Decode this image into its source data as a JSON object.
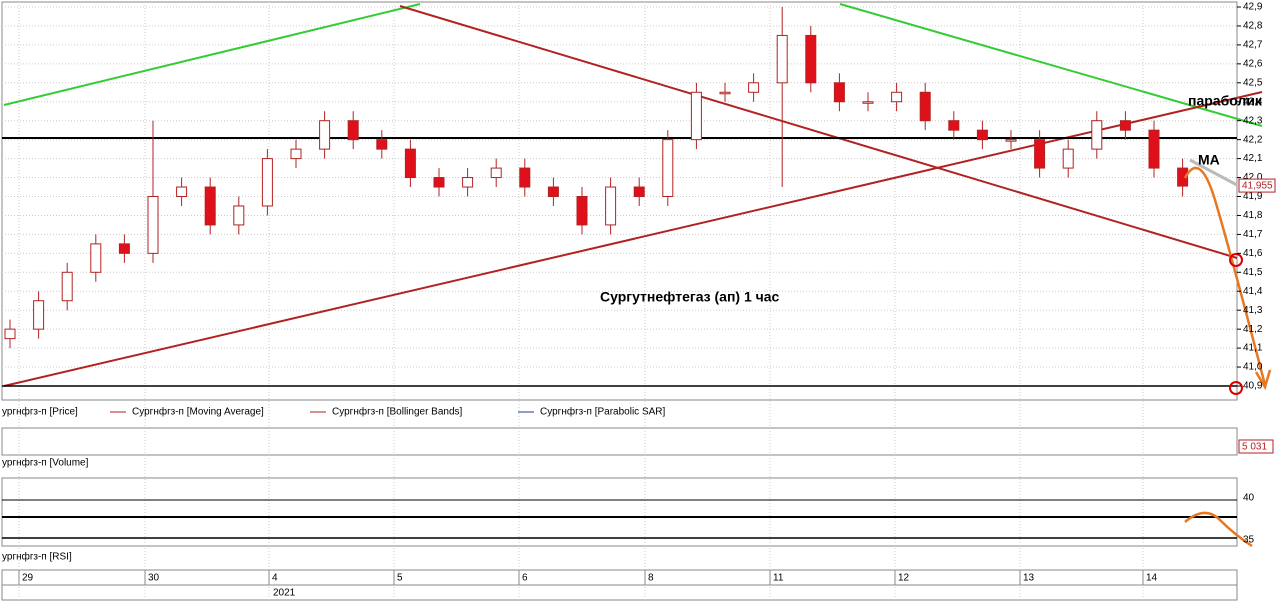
{
  "chart_data": {
    "type": "candlestick",
    "title": "Сургутнефтегаз (ап)   1 час",
    "annotations": [
      "параболик",
      "MA"
    ],
    "legend": [
      "ургнфгз-п [Price]",
      "Сургнфгз-п [Moving Average]",
      "Сургнфгз-п [Bollinger Bands]",
      "Сургнфгз-п [Parabolic SAR]"
    ],
    "panel_labels": [
      "ургнфгз-п [Volume]",
      "ургнфгз-п [RSI]"
    ],
    "last_price": {
      "value": 41.955,
      "label": "41,955"
    },
    "last_volume": "5 031",
    "days": [
      "29",
      "30",
      "4",
      "5",
      "6",
      "8",
      "11",
      "12",
      "13",
      "14"
    ],
    "year": "2021",
    "open": [
      41.15,
      41.2,
      41.35,
      41.5,
      41.65,
      41.6,
      41.9,
      41.95,
      41.75,
      41.85,
      42.1,
      42.15,
      42.3,
      42.2,
      42.15,
      42.0,
      41.95,
      42.0,
      42.05,
      41.95,
      41.9,
      41.75,
      41.95,
      41.9,
      42.2,
      42.45,
      42.45,
      42.5,
      42.75,
      42.5,
      42.4,
      42.4,
      42.45,
      42.3,
      42.25,
      42.2,
      42.2,
      42.05,
      42.15,
      42.3,
      42.25,
      42.05
    ],
    "high": [
      41.25,
      41.4,
      41.55,
      41.7,
      41.7,
      42.3,
      42.0,
      42.0,
      41.9,
      42.15,
      42.2,
      42.35,
      42.35,
      42.25,
      42.2,
      42.05,
      42.05,
      42.1,
      42.1,
      42.0,
      41.95,
      42.0,
      42.0,
      42.25,
      42.5,
      42.5,
      42.55,
      42.9,
      42.8,
      42.55,
      42.45,
      42.5,
      42.5,
      42.35,
      42.3,
      42.25,
      42.25,
      42.2,
      42.35,
      42.35,
      42.3,
      42.1
    ],
    "low": [
      41.1,
      41.15,
      41.3,
      41.45,
      41.55,
      41.55,
      41.85,
      41.7,
      41.7,
      41.8,
      42.05,
      42.1,
      42.15,
      42.1,
      41.95,
      41.9,
      41.9,
      41.95,
      41.9,
      41.85,
      41.7,
      41.7,
      41.85,
      41.85,
      42.15,
      42.4,
      42.4,
      41.95,
      42.45,
      42.35,
      42.35,
      42.35,
      42.25,
      42.2,
      42.15,
      42.15,
      42.0,
      42.0,
      42.1,
      42.2,
      42.0,
      41.9
    ],
    "close": [
      41.2,
      41.35,
      41.5,
      41.65,
      41.6,
      41.9,
      41.95,
      41.75,
      41.85,
      42.1,
      42.15,
      42.3,
      42.2,
      42.15,
      42.0,
      41.95,
      42.0,
      42.05,
      41.95,
      41.9,
      41.75,
      41.95,
      41.9,
      42.2,
      42.45,
      42.45,
      42.5,
      42.75,
      42.5,
      42.4,
      42.4,
      42.45,
      42.3,
      42.25,
      42.2,
      42.2,
      42.05,
      42.15,
      42.3,
      42.25,
      42.05,
      41.955
    ],
    "ylim": [
      40.9,
      42.9
    ],
    "yticks": [
      {
        "value": 40.9,
        "label": "40,9"
      },
      {
        "value": 41.0,
        "label": "41,0"
      },
      {
        "value": 41.1,
        "label": "41,1"
      },
      {
        "value": 41.2,
        "label": "41,2"
      },
      {
        "value": 41.3,
        "label": "41,3"
      },
      {
        "value": 41.4,
        "label": "41,4"
      },
      {
        "value": 41.5,
        "label": "41,5"
      },
      {
        "value": 41.6,
        "label": "41,6"
      },
      {
        "value": 41.7,
        "label": "41,7"
      },
      {
        "value": 41.8,
        "label": "41,8"
      },
      {
        "value": 41.9,
        "label": "41,9"
      },
      {
        "value": 42.0,
        "label": "42,0"
      },
      {
        "value": 42.1,
        "label": "42,1"
      },
      {
        "value": 42.2,
        "label": "42,2"
      },
      {
        "value": 42.3,
        "label": "42,3"
      },
      {
        "value": 42.4,
        "label": "42,4"
      },
      {
        "value": 42.5,
        "label": "42,5"
      },
      {
        "value": 42.6,
        "label": "42,6"
      },
      {
        "value": 42.7,
        "label": "42,7"
      },
      {
        "value": 42.8,
        "label": "42,8"
      },
      {
        "value": 42.9,
        "label": "42,9"
      }
    ],
    "rsi_ticks": [
      40,
      35
    ],
    "grid": true
  }
}
